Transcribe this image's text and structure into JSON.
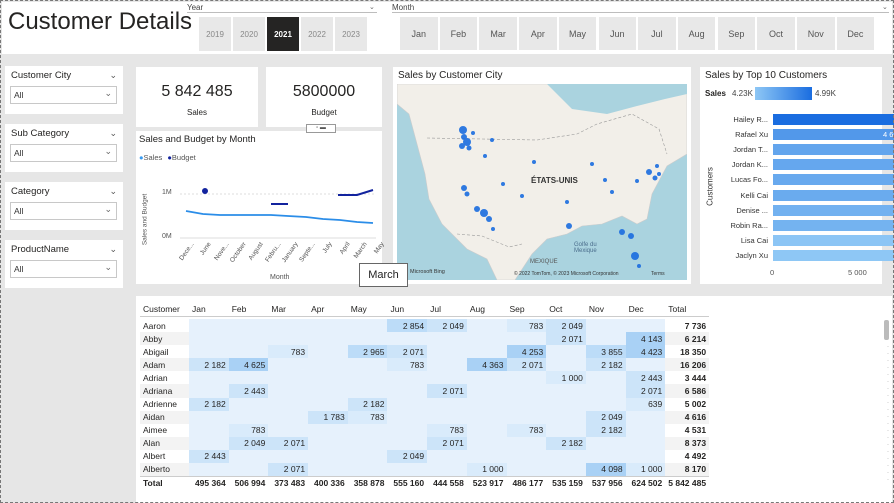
{
  "page_title": "Customer Details",
  "year_slicer": {
    "label": "Year",
    "options": [
      "2019",
      "2020",
      "2021",
      "2022",
      "2023"
    ],
    "selected": "2021"
  },
  "month_slicer": {
    "label": "Month",
    "options": [
      "Jan",
      "Feb",
      "Mar",
      "Apr",
      "May",
      "Jun",
      "Jul",
      "Aug",
      "Sep",
      "Oct",
      "Nov",
      "Dec"
    ]
  },
  "filters": [
    {
      "label": "Customer City",
      "value": "All"
    },
    {
      "label": "Sub Category",
      "value": "All"
    },
    {
      "label": "Category",
      "value": "All"
    },
    {
      "label": "ProductName",
      "value": "All"
    }
  ],
  "kpis": {
    "sales": {
      "value": "5 842 485",
      "label": "Sales"
    },
    "budget": {
      "value": "5800000",
      "label": "Budget"
    }
  },
  "line_chart": {
    "title": "Sales and Budget by Month",
    "legend": [
      "Sales",
      "Budget"
    ],
    "ylabel": "Sales and Budget",
    "xlabel": "Month",
    "yticks": [
      "1M",
      "0M"
    ],
    "xticks": [
      "Dece...",
      "June",
      "Nove...",
      "October",
      "August",
      "Febru...",
      "January",
      "Septe...",
      "July",
      "April",
      "March",
      "May"
    ]
  },
  "tooltip": "March",
  "map": {
    "title": "Sales by Customer City",
    "country_label": "ÉTATS-UNIS",
    "mexico_label": "MEXIQUE",
    "gulf_label": "Golfe du Mexique",
    "attribution": "© 2022 TomTom, © 2023 Microsoft Corporation",
    "terms": "Terms",
    "logo": "Microsoft Bing"
  },
  "top10": {
    "title": "Sales by Top 10 Customers",
    "legend_label": "Sales",
    "legend_min": "4.23K",
    "legend_max": "4.99K",
    "ylabel": "Customers",
    "xticks": [
      "0",
      "5 000"
    ]
  },
  "chart_data": {
    "type": "bar",
    "title": "Sales by Top 10 Customers",
    "ylabel": "Customers",
    "xlim": [
      0,
      5000
    ],
    "categories": [
      "Hailey R...",
      "Rafael Xu",
      "Jordan T...",
      "Jordan K...",
      "Lucas Fo...",
      "Kelli Cai",
      "Denise ...",
      "Robin Ra...",
      "Lisa Cai",
      "Jaclyn Xu"
    ],
    "values": [
      4986,
      4625,
      4515,
      4499,
      4484,
      4470,
      4416,
      4404,
      4251,
      4235
    ],
    "value_labels": [
      "4 986",
      "4 625",
      "4 515",
      "4 499",
      "4 484",
      "4 470",
      "4 416",
      "4 404",
      "4 251",
      "4 235"
    ]
  },
  "matrix": {
    "headers": [
      "Customer",
      "Jan",
      "Feb",
      "Mar",
      "Apr",
      "May",
      "Jun",
      "Jul",
      "Aug",
      "Sep",
      "Oct",
      "Nov",
      "Dec",
      "Total"
    ],
    "rows": [
      {
        "name": "Aaron",
        "cells": [
          "",
          "",
          "",
          "",
          "",
          "2 854",
          "2 049",
          "",
          "783",
          "2 049",
          "",
          ""
        ],
        "total": "7 736"
      },
      {
        "name": "Abby",
        "cells": [
          "",
          "",
          "",
          "",
          "",
          "",
          "",
          "",
          "",
          "2 071",
          "",
          "4 143"
        ],
        "total": "6 214"
      },
      {
        "name": "Abigail",
        "cells": [
          "",
          "",
          "783",
          "",
          "2 965",
          "2 071",
          "",
          "",
          "4 253",
          "",
          "3 855",
          "4 423"
        ],
        "total": "18 350"
      },
      {
        "name": "Adam",
        "cells": [
          "2 182",
          "4 625",
          "",
          "",
          "",
          "783",
          "",
          "4 363",
          "2 071",
          "",
          "2 182",
          ""
        ],
        "total": "16 206"
      },
      {
        "name": "Adrian",
        "cells": [
          "",
          "",
          "",
          "",
          "",
          "",
          "",
          "",
          "",
          "1 000",
          "",
          "2 443"
        ],
        "total": "3 444"
      },
      {
        "name": "Adriana",
        "cells": [
          "",
          "2 443",
          "",
          "",
          "",
          "",
          "2 071",
          "",
          "",
          "",
          "",
          "2 071"
        ],
        "total": "6 586"
      },
      {
        "name": "Adrienne",
        "cells": [
          "2 182",
          "",
          "",
          "",
          "2 182",
          "",
          "",
          "",
          "",
          "",
          "",
          "639"
        ],
        "total": "5 002"
      },
      {
        "name": "Aidan",
        "cells": [
          "",
          "",
          "",
          "1 783",
          "783",
          "",
          "",
          "",
          "",
          "",
          "2 049",
          ""
        ],
        "total": "4 616"
      },
      {
        "name": "Aimee",
        "cells": [
          "",
          "783",
          "",
          "",
          "",
          "",
          "783",
          "",
          "783",
          "",
          "2 182",
          ""
        ],
        "total": "4 531"
      },
      {
        "name": "Alan",
        "cells": [
          "",
          "2 049",
          "2 071",
          "",
          "",
          "",
          "2 071",
          "",
          "",
          "2 182",
          "",
          ""
        ],
        "total": "8 373"
      },
      {
        "name": "Albert",
        "cells": [
          "2 443",
          "",
          "",
          "",
          "",
          "2 049",
          "",
          "",
          "",
          "",
          "",
          ""
        ],
        "total": "4 492"
      },
      {
        "name": "Alberto",
        "cells": [
          "",
          "",
          "2 071",
          "",
          "",
          "",
          "",
          "1 000",
          "",
          "",
          "4 098",
          "1 000"
        ],
        "total": "8 170"
      }
    ],
    "total_row": {
      "name": "Total",
      "cells": [
        "495 364",
        "506 994",
        "373 483",
        "400 336",
        "358 878",
        "555 160",
        "444 558",
        "523 917",
        "486 177",
        "535 159",
        "537 956",
        "624 502"
      ],
      "total": "5 842 485"
    }
  }
}
